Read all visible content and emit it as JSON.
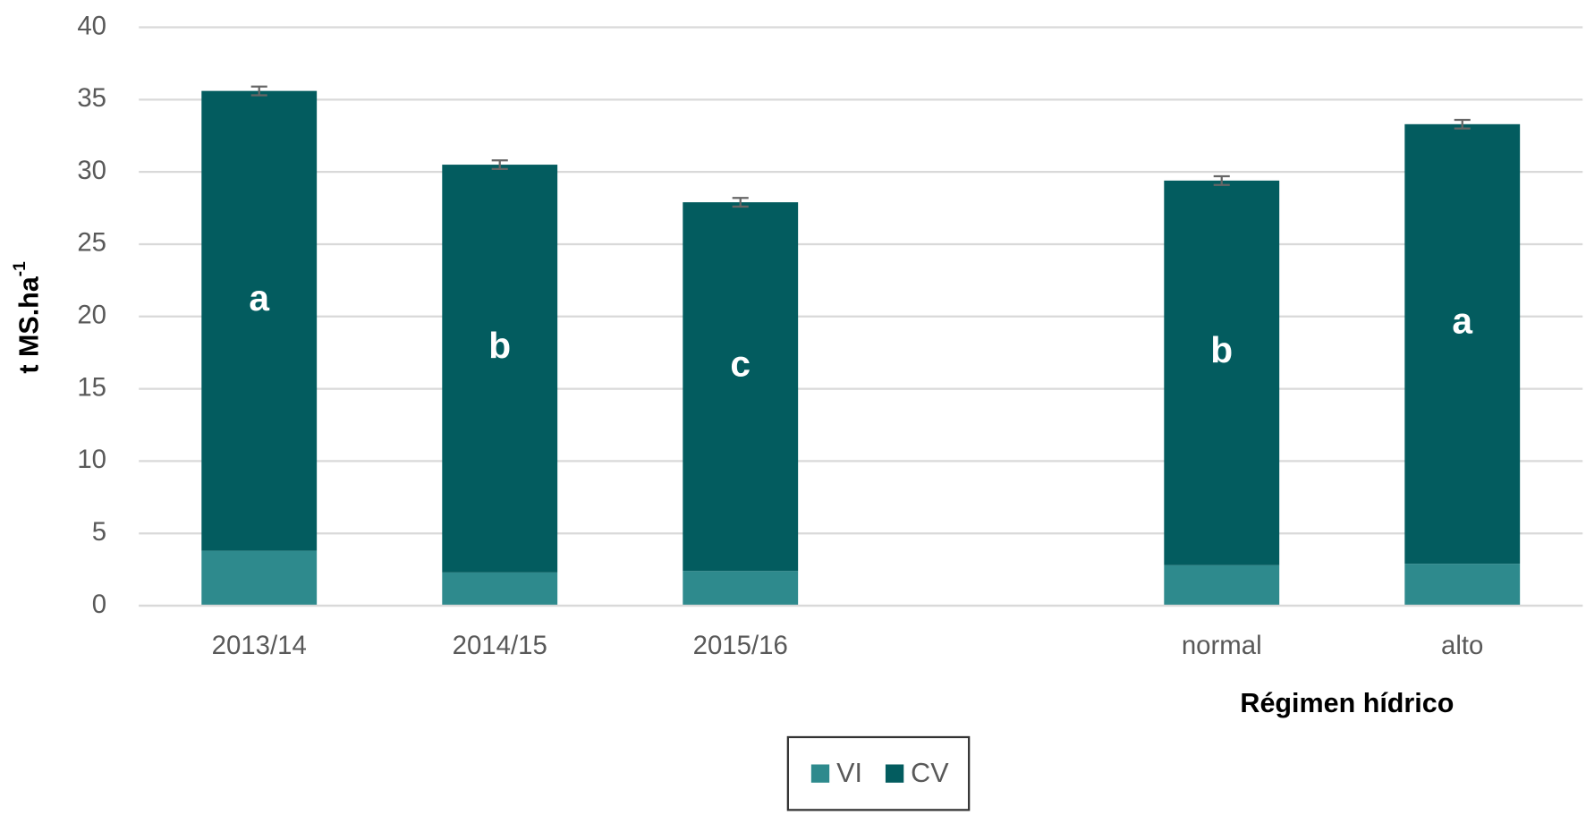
{
  "chart_data": {
    "type": "stacked_bar",
    "y_label": "t MS.ha",
    "y_label_sup": "-1",
    "x_label": "Régimen hídrico",
    "categories": [
      "2013/14",
      "2014/15",
      "2015/16",
      null,
      "normal",
      "alto"
    ],
    "series": [
      {
        "name": "VI",
        "color": "#2e8a8d",
        "values": [
          3.8,
          2.3,
          2.4,
          null,
          2.8,
          2.9
        ]
      },
      {
        "name": "CV",
        "color": "#035c5f",
        "values": [
          31.8,
          28.2,
          25.5,
          null,
          26.6,
          30.4
        ],
        "errors": [
          0.3,
          0.3,
          0.3,
          null,
          0.3,
          0.3
        ]
      }
    ],
    "letters": [
      "a",
      "b",
      "c",
      null,
      "b",
      "a"
    ],
    "error_color": "#666666",
    "ylim": [
      0,
      40
    ],
    "yticks": [
      0,
      5,
      10,
      15,
      20,
      25,
      30,
      35,
      40
    ],
    "grid": true,
    "legend": "bottom"
  }
}
